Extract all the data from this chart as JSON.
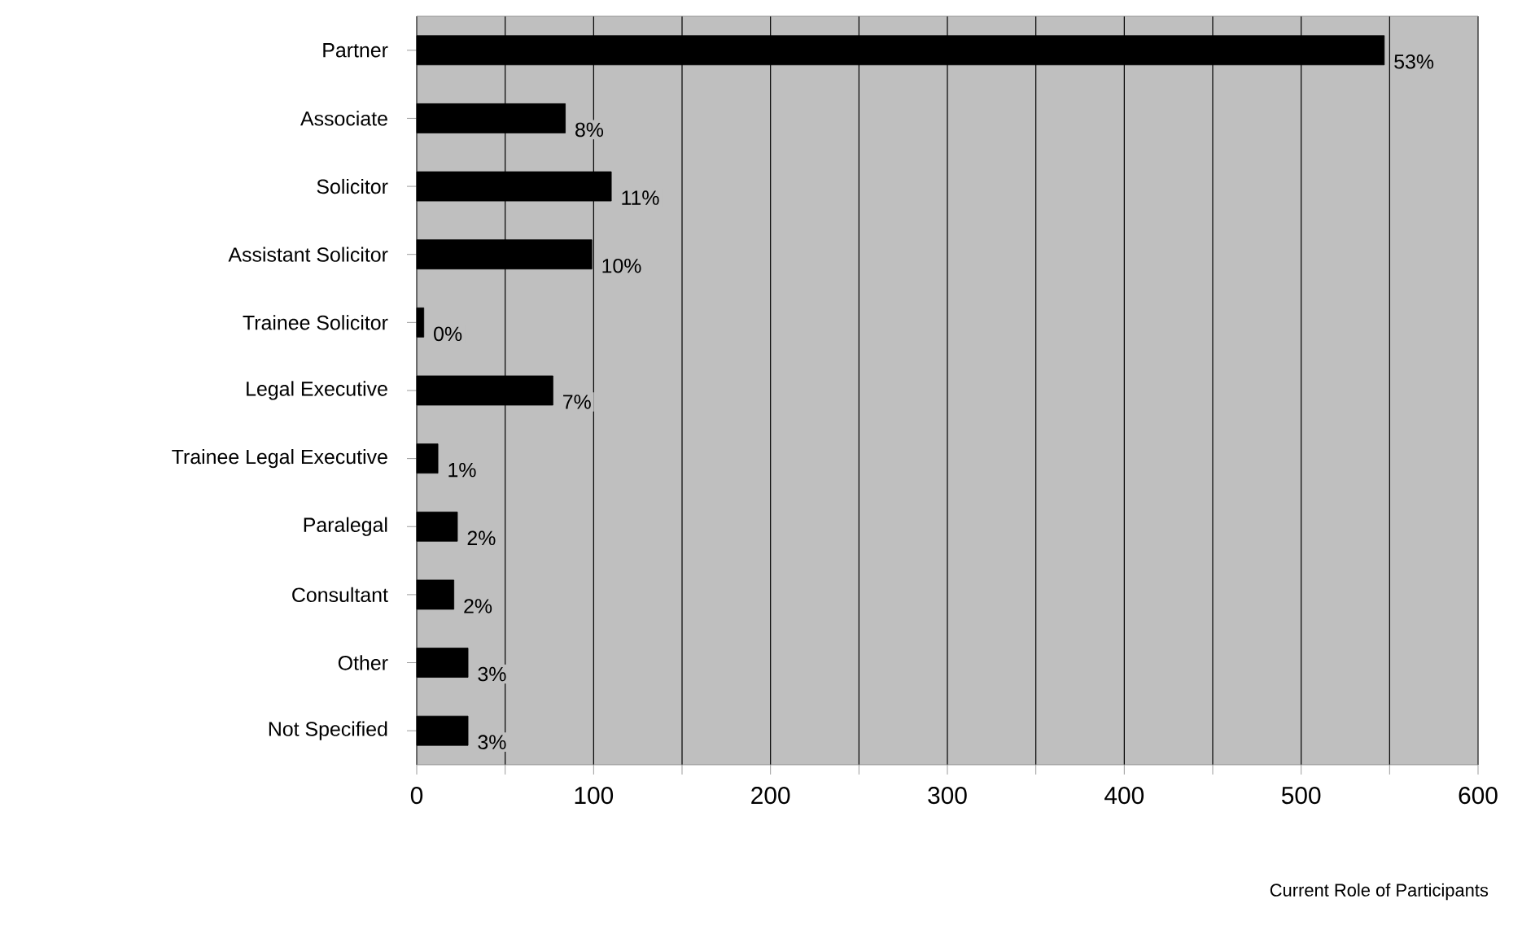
{
  "chart_data": {
    "type": "bar",
    "orientation": "horizontal",
    "xlabel": "Current Role of Participants",
    "categories": [
      "Partner",
      "Associate",
      "Solicitor",
      "Assistant Solicitor",
      "Trainee Solicitor",
      "Legal Executive",
      "Trainee Legal Executive",
      "Paralegal",
      "Consultant",
      "Other",
      "Not Specified"
    ],
    "values": [
      547,
      84,
      110,
      99,
      4,
      77,
      12,
      23,
      21,
      29,
      29
    ],
    "annotations": [
      {
        "text": "53%",
        "x": 547,
        "y": "Partner"
      },
      {
        "text": "8%",
        "x": 84,
        "y": "Associate"
      },
      {
        "text": "11%",
        "x": 110,
        "y": "Solicitor"
      },
      {
        "text": "10%",
        "x": 99,
        "y": "Assistant Solicitor"
      },
      {
        "text": "0%",
        "x": 4,
        "y": "Trainee Solicitor"
      },
      {
        "text": "7%",
        "x": 77,
        "y": "Legal Executive"
      },
      {
        "text": "1%",
        "x": 12,
        "y": "Trainee Legal Executive"
      },
      {
        "text": "2%",
        "x": 23,
        "y": "Paralegal"
      },
      {
        "text": "2%",
        "x": 21,
        "y": "Consultant"
      },
      {
        "text": "3%",
        "x": 29,
        "y": "Other"
      },
      {
        "text": "3%",
        "x": 29,
        "y": "Not Specified"
      }
    ],
    "color": "#000000",
    "xlim": [
      0,
      600
    ],
    "xticks": [
      0,
      {
        "value": 50,
        "label": null
      },
      100,
      {
        "value": 150,
        "label": null
      },
      200,
      {
        "value": 250,
        "label": null
      },
      300,
      {
        "value": 350,
        "label": null
      },
      400,
      {
        "value": 450,
        "label": null
      },
      500,
      {
        "value": 550,
        "label": null
      },
      600
    ],
    "grid": "x"
  }
}
